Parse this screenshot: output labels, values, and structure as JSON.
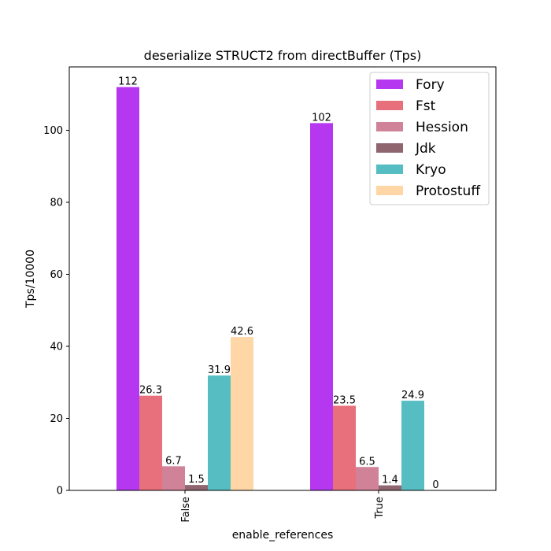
{
  "chart_data": {
    "type": "bar",
    "title": "deserialize STRUCT2 from directBuffer (Tps)",
    "xlabel": "enable_references",
    "ylabel": "Tps/10000",
    "categories": [
      "False",
      "True"
    ],
    "ylim": [
      0,
      117.6
    ],
    "yticks": [
      0,
      20,
      40,
      60,
      80,
      100
    ],
    "grid": false,
    "legend_position": "top-right",
    "series": [
      {
        "name": "Fory",
        "color": "#b538f0",
        "values": [
          112,
          102
        ],
        "labels": [
          "112",
          "102"
        ]
      },
      {
        "name": "Fst",
        "color": "#e8707c",
        "values": [
          26.3,
          23.5
        ],
        "labels": [
          "26.3",
          "23.5"
        ]
      },
      {
        "name": "Hession",
        "color": "#cf8298",
        "values": [
          6.7,
          6.5
        ],
        "labels": [
          "6.7",
          "6.5"
        ]
      },
      {
        "name": "Jdk",
        "color": "#8f6570",
        "values": [
          1.5,
          1.4
        ],
        "labels": [
          "1.5",
          "1.4"
        ]
      },
      {
        "name": "Kryo",
        "color": "#56bec2",
        "values": [
          31.9,
          24.9
        ],
        "labels": [
          "31.9",
          "24.9"
        ]
      },
      {
        "name": "Protostuff",
        "color": "#ffd6a6",
        "values": [
          42.6,
          0
        ],
        "labels": [
          "42.6",
          "0"
        ]
      }
    ]
  }
}
